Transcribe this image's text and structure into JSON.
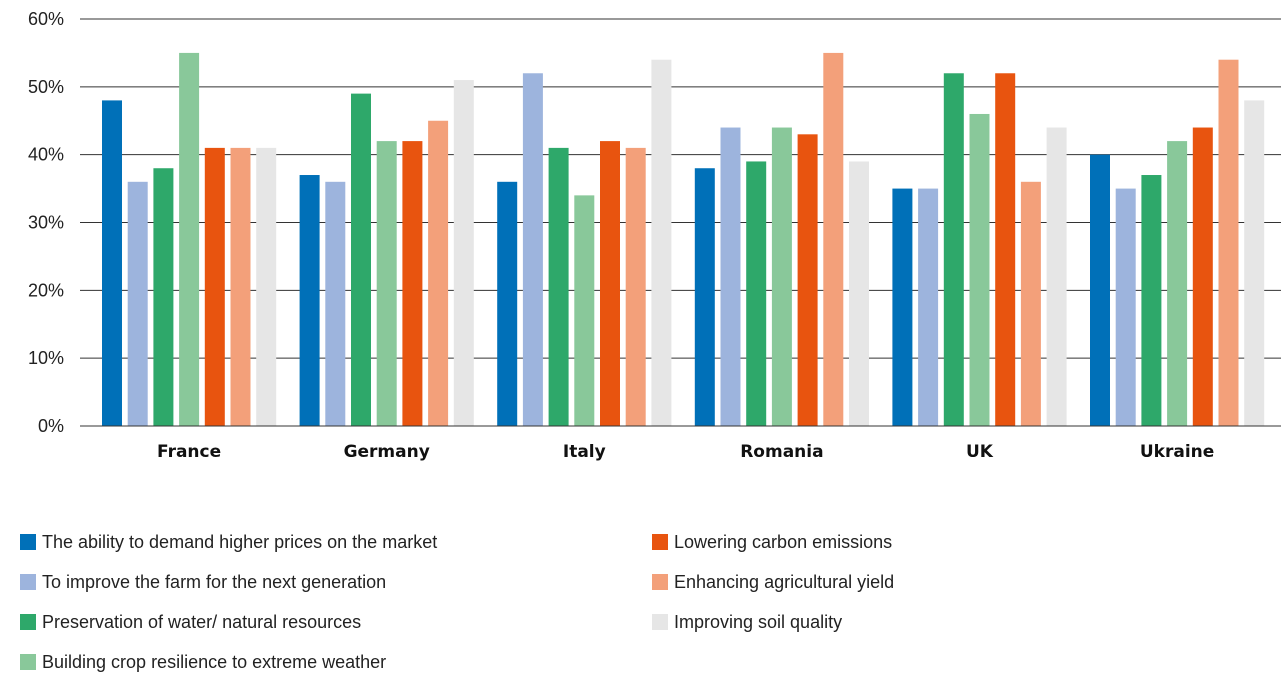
{
  "chart_data": {
    "type": "bar",
    "title": "",
    "xlabel": "",
    "ylabel": "",
    "ylim": [
      0,
      60
    ],
    "yticks": [
      "0%",
      "10%",
      "20%",
      "30%",
      "40%",
      "50%",
      "60%"
    ],
    "grid": true,
    "legend_position": "bottom",
    "categories": [
      "France",
      "Germany",
      "Italy",
      "Romania",
      "UK",
      "Ukraine"
    ],
    "series": [
      {
        "name": "The ability to demand higher prices on the market",
        "color": "#0070b8",
        "values": [
          48,
          37,
          36,
          38,
          35,
          40
        ]
      },
      {
        "name": "To improve the farm for the next generation",
        "color": "#9db4dd",
        "values": [
          36,
          36,
          52,
          44,
          35,
          35
        ]
      },
      {
        "name": "Preservation of water/ natural resources",
        "color": "#2ea86a",
        "values": [
          38,
          49,
          41,
          39,
          52,
          37
        ]
      },
      {
        "name": "Building crop resilience to extreme weather",
        "color": "#89c89a",
        "values": [
          55,
          42,
          34,
          44,
          46,
          42
        ]
      },
      {
        "name": "Lowering carbon emissions",
        "color": "#e8540f",
        "values": [
          41,
          42,
          42,
          43,
          52,
          44
        ]
      },
      {
        "name": "Enhancing agricultural yield",
        "color": "#f3a07a",
        "values": [
          41,
          45,
          41,
          55,
          36,
          54
        ]
      },
      {
        "name": "Improving soil quality",
        "color": "#e6e6e6",
        "values": [
          41,
          51,
          54,
          39,
          44,
          48
        ]
      }
    ]
  }
}
